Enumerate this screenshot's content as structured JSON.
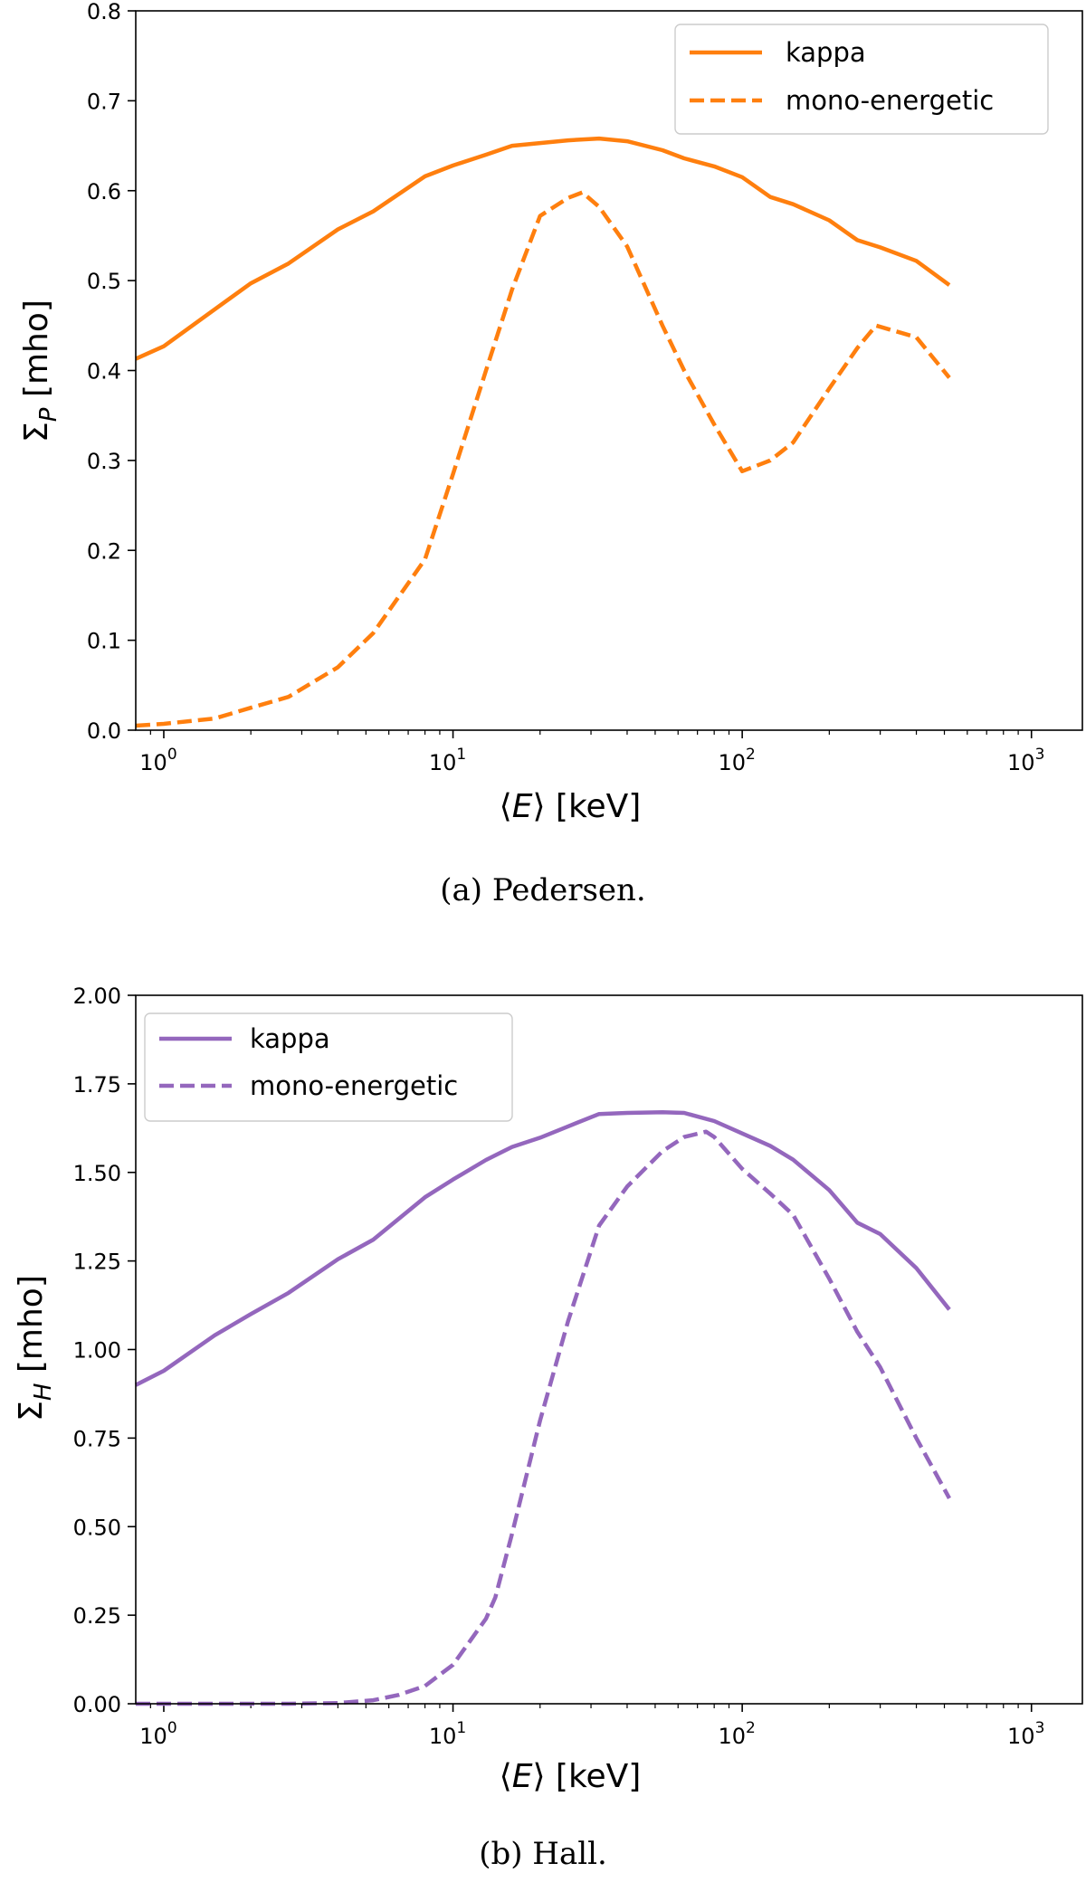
{
  "chart_data": [
    {
      "type": "line",
      "id": "a",
      "caption": "(a)  Pedersen.",
      "xlabel": "⟨E⟩ [keV]",
      "ylabel": "ΣP [mho]",
      "xscale": "log",
      "xlim": [
        0.8,
        1500
      ],
      "ylim": [
        0.0,
        0.8
      ],
      "yticks": [
        0.0,
        0.1,
        0.2,
        0.3,
        0.4,
        0.5,
        0.6,
        0.7,
        0.8
      ],
      "ytick_labels": [
        "0.0",
        "0.1",
        "0.2",
        "0.3",
        "0.4",
        "0.5",
        "0.6",
        "0.7",
        "0.8"
      ],
      "xticks": [
        1,
        10,
        100,
        1000
      ],
      "xtick_labels": [
        {
          "base": "10",
          "exp": "0"
        },
        {
          "base": "10",
          "exp": "1"
        },
        {
          "base": "10",
          "exp": "2"
        },
        {
          "base": "10",
          "exp": "3"
        }
      ],
      "legend_position": "top-right",
      "series": [
        {
          "name": "kappa",
          "style": "solid",
          "color": "#ff7f0e",
          "x": [
            0.8,
            1.0,
            1.5,
            2.0,
            2.7,
            4.0,
            5.3,
            8.0,
            10,
            13,
            16,
            20,
            25,
            32,
            40,
            53,
            63,
            80,
            100,
            125,
            150,
            200,
            250,
            300,
            400,
            520
          ],
          "y": [
            0.413,
            0.427,
            0.468,
            0.497,
            0.519,
            0.557,
            0.577,
            0.616,
            0.628,
            0.64,
            0.65,
            0.653,
            0.656,
            0.658,
            0.655,
            0.645,
            0.636,
            0.627,
            0.615,
            0.593,
            0.585,
            0.567,
            0.545,
            0.537,
            0.522,
            0.495
          ]
        },
        {
          "name": "mono-energetic",
          "style": "dashed",
          "color": "#ff7f0e",
          "x": [
            0.8,
            1.0,
            1.5,
            2.0,
            2.7,
            4.0,
            5.3,
            8.0,
            10,
            13,
            16,
            20,
            25,
            28,
            32,
            40,
            53,
            63,
            80,
            100,
            125,
            150,
            200,
            250,
            290,
            400,
            520
          ],
          "y": [
            0.005,
            0.007,
            0.013,
            0.025,
            0.037,
            0.07,
            0.108,
            0.19,
            0.285,
            0.4,
            0.49,
            0.572,
            0.592,
            0.598,
            0.582,
            0.538,
            0.45,
            0.4,
            0.34,
            0.288,
            0.3,
            0.32,
            0.38,
            0.425,
            0.45,
            0.437,
            0.392
          ]
        }
      ]
    },
    {
      "type": "line",
      "id": "b",
      "caption": "(b)  Hall.",
      "xlabel": "⟨E⟩ [keV]",
      "ylabel": "ΣH [mho]",
      "xscale": "log",
      "xlim": [
        0.8,
        1500
      ],
      "ylim": [
        0.0,
        2.0
      ],
      "yticks": [
        0.0,
        0.25,
        0.5,
        0.75,
        1.0,
        1.25,
        1.5,
        1.75,
        2.0
      ],
      "ytick_labels": [
        "0.00",
        "0.25",
        "0.50",
        "0.75",
        "1.00",
        "1.25",
        "1.50",
        "1.75",
        "2.00"
      ],
      "xticks": [
        1,
        10,
        100,
        1000
      ],
      "xtick_labels": [
        {
          "base": "10",
          "exp": "0"
        },
        {
          "base": "10",
          "exp": "1"
        },
        {
          "base": "10",
          "exp": "2"
        },
        {
          "base": "10",
          "exp": "3"
        }
      ],
      "legend_position": "top-left",
      "series": [
        {
          "name": "kappa",
          "style": "solid",
          "color": "#9467bd",
          "x": [
            0.8,
            1.0,
            1.5,
            2.0,
            2.7,
            4.0,
            5.3,
            8.0,
            10,
            13,
            16,
            20,
            25,
            32,
            40,
            53,
            63,
            80,
            100,
            125,
            150,
            200,
            250,
            300,
            400,
            520
          ],
          "y": [
            0.9,
            0.94,
            1.04,
            1.1,
            1.16,
            1.255,
            1.31,
            1.43,
            1.48,
            1.535,
            1.572,
            1.598,
            1.63,
            1.665,
            1.668,
            1.67,
            1.668,
            1.645,
            1.61,
            1.575,
            1.536,
            1.45,
            1.358,
            1.326,
            1.23,
            1.113
          ]
        },
        {
          "name": "mono-energetic",
          "style": "dashed",
          "color": "#9467bd",
          "x": [
            0.8,
            1.0,
            1.5,
            2.0,
            2.7,
            4.0,
            5.3,
            6.5,
            8.0,
            10,
            13,
            14,
            16,
            20,
            25,
            32,
            40,
            53,
            63,
            75,
            80,
            100,
            125,
            150,
            200,
            250,
            300,
            400,
            520
          ],
          "y": [
            0.0,
            0.0,
            0.0,
            0.0,
            0.0,
            0.002,
            0.01,
            0.025,
            0.05,
            0.11,
            0.24,
            0.3,
            0.48,
            0.8,
            1.08,
            1.35,
            1.46,
            1.56,
            1.6,
            1.615,
            1.6,
            1.51,
            1.44,
            1.38,
            1.2,
            1.05,
            0.95,
            0.75,
            0.58
          ]
        }
      ]
    }
  ]
}
